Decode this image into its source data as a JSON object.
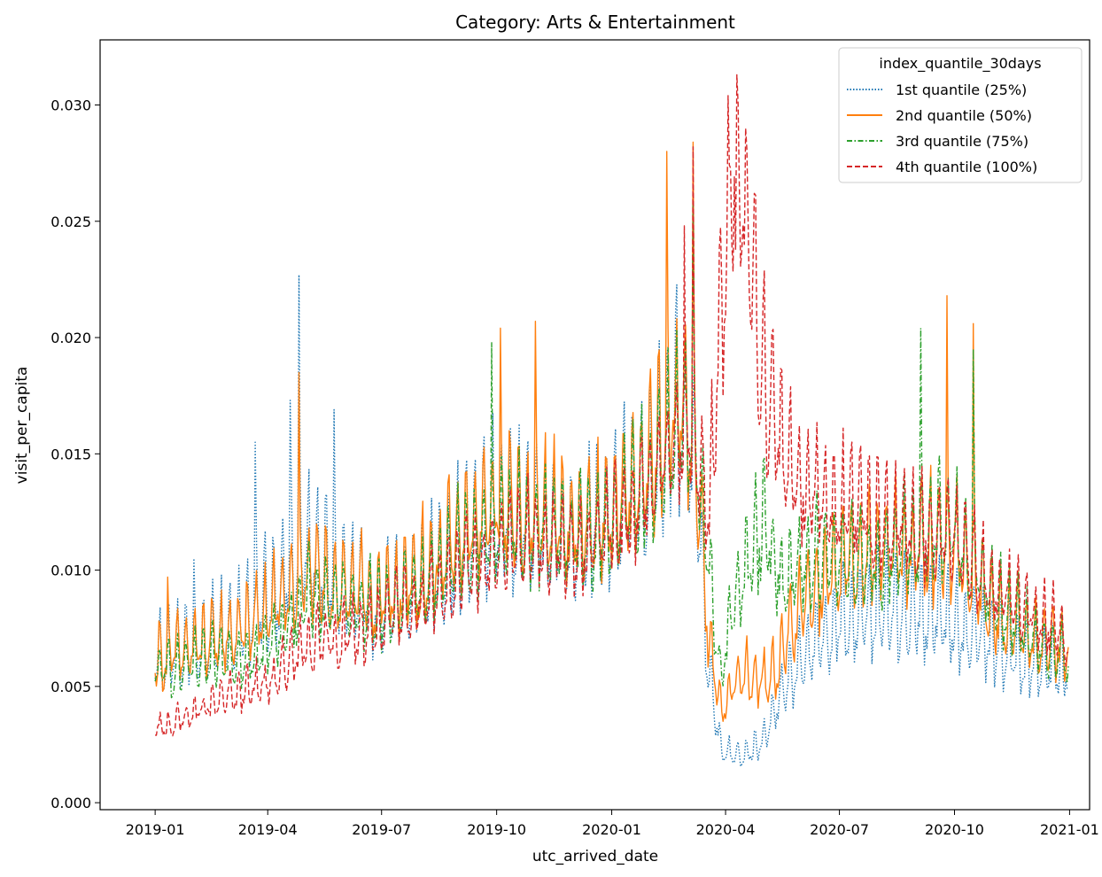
{
  "chart_data": {
    "type": "line",
    "title": "Category: Arts & Entertainment",
    "xlabel": "utc_arrived_date",
    "ylabel": "visit_per_capita",
    "xlim": [
      "2018-11-18",
      "2021-01-17"
    ],
    "ylim": [
      -0.0003,
      0.0328
    ],
    "x_ticks": [
      "2019-01",
      "2019-04",
      "2019-07",
      "2019-10",
      "2020-01",
      "2020-04",
      "2020-07",
      "2020-10",
      "2021-01"
    ],
    "x_tick_dates": [
      "2019-01-01",
      "2019-04-01",
      "2019-07-01",
      "2019-10-01",
      "2020-01-01",
      "2020-04-01",
      "2020-07-01",
      "2020-10-01",
      "2021-01-01"
    ],
    "y_ticks": [
      "0.000",
      "0.005",
      "0.010",
      "0.015",
      "0.020",
      "0.025",
      "0.030"
    ],
    "y_tick_values": [
      0.0,
      0.005,
      0.01,
      0.015,
      0.02,
      0.025,
      0.03
    ],
    "legend": {
      "title": "index_quantile_30days",
      "position": "top-right"
    },
    "grid": false,
    "date_range": [
      "2019-01-01",
      "2020-12-31"
    ],
    "series": [
      {
        "name": "1st quantile (25%)",
        "color": "#1f77b4",
        "dash": "dotted",
        "weekly_amplitude": 0.55,
        "anchors": [
          [
            "2019-01-01",
            0.006
          ],
          [
            "2019-03-01",
            0.007
          ],
          [
            "2019-04-01",
            0.0085
          ],
          [
            "2019-05-01",
            0.0105
          ],
          [
            "2019-06-01",
            0.009
          ],
          [
            "2019-07-01",
            0.008
          ],
          [
            "2019-08-01",
            0.009
          ],
          [
            "2019-09-01",
            0.0105
          ],
          [
            "2019-10-01",
            0.012
          ],
          [
            "2019-11-01",
            0.0115
          ],
          [
            "2019-12-01",
            0.011
          ],
          [
            "2020-01-01",
            0.012
          ],
          [
            "2020-02-01",
            0.0135
          ],
          [
            "2020-02-25",
            0.016
          ],
          [
            "2020-03-08",
            0.014
          ],
          [
            "2020-03-18",
            0.006
          ],
          [
            "2020-03-28",
            0.0022
          ],
          [
            "2020-04-15",
            0.002
          ],
          [
            "2020-05-01",
            0.0025
          ],
          [
            "2020-05-15",
            0.0045
          ],
          [
            "2020-06-01",
            0.006
          ],
          [
            "2020-07-01",
            0.0075
          ],
          [
            "2020-08-01",
            0.008
          ],
          [
            "2020-09-01",
            0.008
          ],
          [
            "2020-10-01",
            0.0075
          ],
          [
            "2020-11-01",
            0.0065
          ],
          [
            "2020-12-01",
            0.006
          ],
          [
            "2020-12-31",
            0.0055
          ]
        ],
        "peaks": [
          [
            "2019-04-26",
            0.0227
          ],
          [
            "2019-04-19",
            0.0173
          ],
          [
            "2019-03-22",
            0.0155
          ],
          [
            "2019-05-24",
            0.0169
          ],
          [
            "2019-02-01",
            0.0105
          ]
        ]
      },
      {
        "name": "2nd quantile (50%)",
        "color": "#ff7f0e",
        "dash": "solid",
        "weekly_amplitude": 0.45,
        "anchors": [
          [
            "2019-01-01",
            0.006
          ],
          [
            "2019-03-01",
            0.007
          ],
          [
            "2019-04-01",
            0.008
          ],
          [
            "2019-05-01",
            0.0095
          ],
          [
            "2019-06-01",
            0.009
          ],
          [
            "2019-07-01",
            0.0085
          ],
          [
            "2019-08-01",
            0.0095
          ],
          [
            "2019-09-01",
            0.011
          ],
          [
            "2019-10-01",
            0.0125
          ],
          [
            "2019-11-01",
            0.012
          ],
          [
            "2019-12-01",
            0.0115
          ],
          [
            "2020-01-01",
            0.012
          ],
          [
            "2020-02-01",
            0.014
          ],
          [
            "2020-02-25",
            0.017
          ],
          [
            "2020-03-08",
            0.015
          ],
          [
            "2020-03-18",
            0.007
          ],
          [
            "2020-03-28",
            0.004
          ],
          [
            "2020-04-15",
            0.0055
          ],
          [
            "2020-05-01",
            0.005
          ],
          [
            "2020-05-15",
            0.006
          ],
          [
            "2020-06-01",
            0.0085
          ],
          [
            "2020-07-01",
            0.01
          ],
          [
            "2020-08-01",
            0.0105
          ],
          [
            "2020-09-01",
            0.0105
          ],
          [
            "2020-10-01",
            0.011
          ],
          [
            "2020-11-01",
            0.008
          ],
          [
            "2020-12-01",
            0.007
          ],
          [
            "2020-12-31",
            0.0065
          ]
        ],
        "peaks": [
          [
            "2020-02-14",
            0.028
          ],
          [
            "2020-03-06",
            0.0284
          ],
          [
            "2019-10-04",
            0.0204
          ],
          [
            "2019-11-01",
            0.0207
          ],
          [
            "2020-09-25",
            0.0218
          ],
          [
            "2020-10-16",
            0.0206
          ],
          [
            "2019-01-11",
            0.0097
          ],
          [
            "2019-04-26",
            0.0185
          ]
        ]
      },
      {
        "name": "3rd quantile (75%)",
        "color": "#2ca02c",
        "dash": "dashdot",
        "weekly_amplitude": 0.4,
        "anchors": [
          [
            "2019-01-01",
            0.0055
          ],
          [
            "2019-03-01",
            0.006
          ],
          [
            "2019-04-01",
            0.0065
          ],
          [
            "2019-05-01",
            0.0085
          ],
          [
            "2019-06-01",
            0.0085
          ],
          [
            "2019-07-01",
            0.008
          ],
          [
            "2019-08-01",
            0.009
          ],
          [
            "2019-09-01",
            0.0105
          ],
          [
            "2019-10-01",
            0.0115
          ],
          [
            "2019-11-01",
            0.0115
          ],
          [
            "2019-12-01",
            0.011
          ],
          [
            "2020-01-01",
            0.0115
          ],
          [
            "2020-02-01",
            0.0135
          ],
          [
            "2020-02-25",
            0.016
          ],
          [
            "2020-03-08",
            0.0145
          ],
          [
            "2020-03-18",
            0.01
          ],
          [
            "2020-03-28",
            0.0055
          ],
          [
            "2020-04-10",
            0.009
          ],
          [
            "2020-05-01",
            0.0115
          ],
          [
            "2020-05-15",
            0.0095
          ],
          [
            "2020-06-01",
            0.01
          ],
          [
            "2020-07-01",
            0.0105
          ],
          [
            "2020-08-01",
            0.01
          ],
          [
            "2020-09-01",
            0.011
          ],
          [
            "2020-10-01",
            0.0115
          ],
          [
            "2020-11-01",
            0.0085
          ],
          [
            "2020-12-01",
            0.007
          ],
          [
            "2020-12-31",
            0.006
          ]
        ],
        "peaks": [
          [
            "2020-03-06",
            0.0258
          ],
          [
            "2019-09-27",
            0.0198
          ],
          [
            "2020-09-04",
            0.0204
          ],
          [
            "2020-10-16",
            0.0195
          ]
        ]
      },
      {
        "name": "4th quantile (100%)",
        "color": "#d62728",
        "dash": "dashed",
        "weekly_amplitude": 0.35,
        "anchors": [
          [
            "2019-01-01",
            0.003
          ],
          [
            "2019-03-01",
            0.0045
          ],
          [
            "2019-04-01",
            0.005
          ],
          [
            "2019-05-01",
            0.0065
          ],
          [
            "2019-06-01",
            0.007
          ],
          [
            "2019-07-01",
            0.0075
          ],
          [
            "2019-08-01",
            0.0085
          ],
          [
            "2019-09-01",
            0.0095
          ],
          [
            "2019-10-01",
            0.0105
          ],
          [
            "2019-11-01",
            0.011
          ],
          [
            "2019-12-01",
            0.0105
          ],
          [
            "2020-01-01",
            0.0115
          ],
          [
            "2020-02-01",
            0.013
          ],
          [
            "2020-02-25",
            0.016
          ],
          [
            "2020-03-08",
            0.015
          ],
          [
            "2020-03-18",
            0.012
          ],
          [
            "2020-03-28",
            0.02
          ],
          [
            "2020-04-08",
            0.0265
          ],
          [
            "2020-04-20",
            0.024
          ],
          [
            "2020-05-01",
            0.018
          ],
          [
            "2020-05-15",
            0.015
          ],
          [
            "2020-06-01",
            0.0135
          ],
          [
            "2020-07-01",
            0.0125
          ],
          [
            "2020-08-01",
            0.012
          ],
          [
            "2020-09-01",
            0.0115
          ],
          [
            "2020-10-01",
            0.011
          ],
          [
            "2020-11-01",
            0.009
          ],
          [
            "2020-12-01",
            0.008
          ],
          [
            "2020-12-31",
            0.007
          ]
        ],
        "peaks": [
          [
            "2020-04-10",
            0.0313
          ],
          [
            "2020-04-03",
            0.0304
          ],
          [
            "2020-03-06",
            0.0282
          ],
          [
            "2020-02-28",
            0.0248
          ],
          [
            "2020-04-17",
            0.029
          ]
        ]
      }
    ]
  }
}
